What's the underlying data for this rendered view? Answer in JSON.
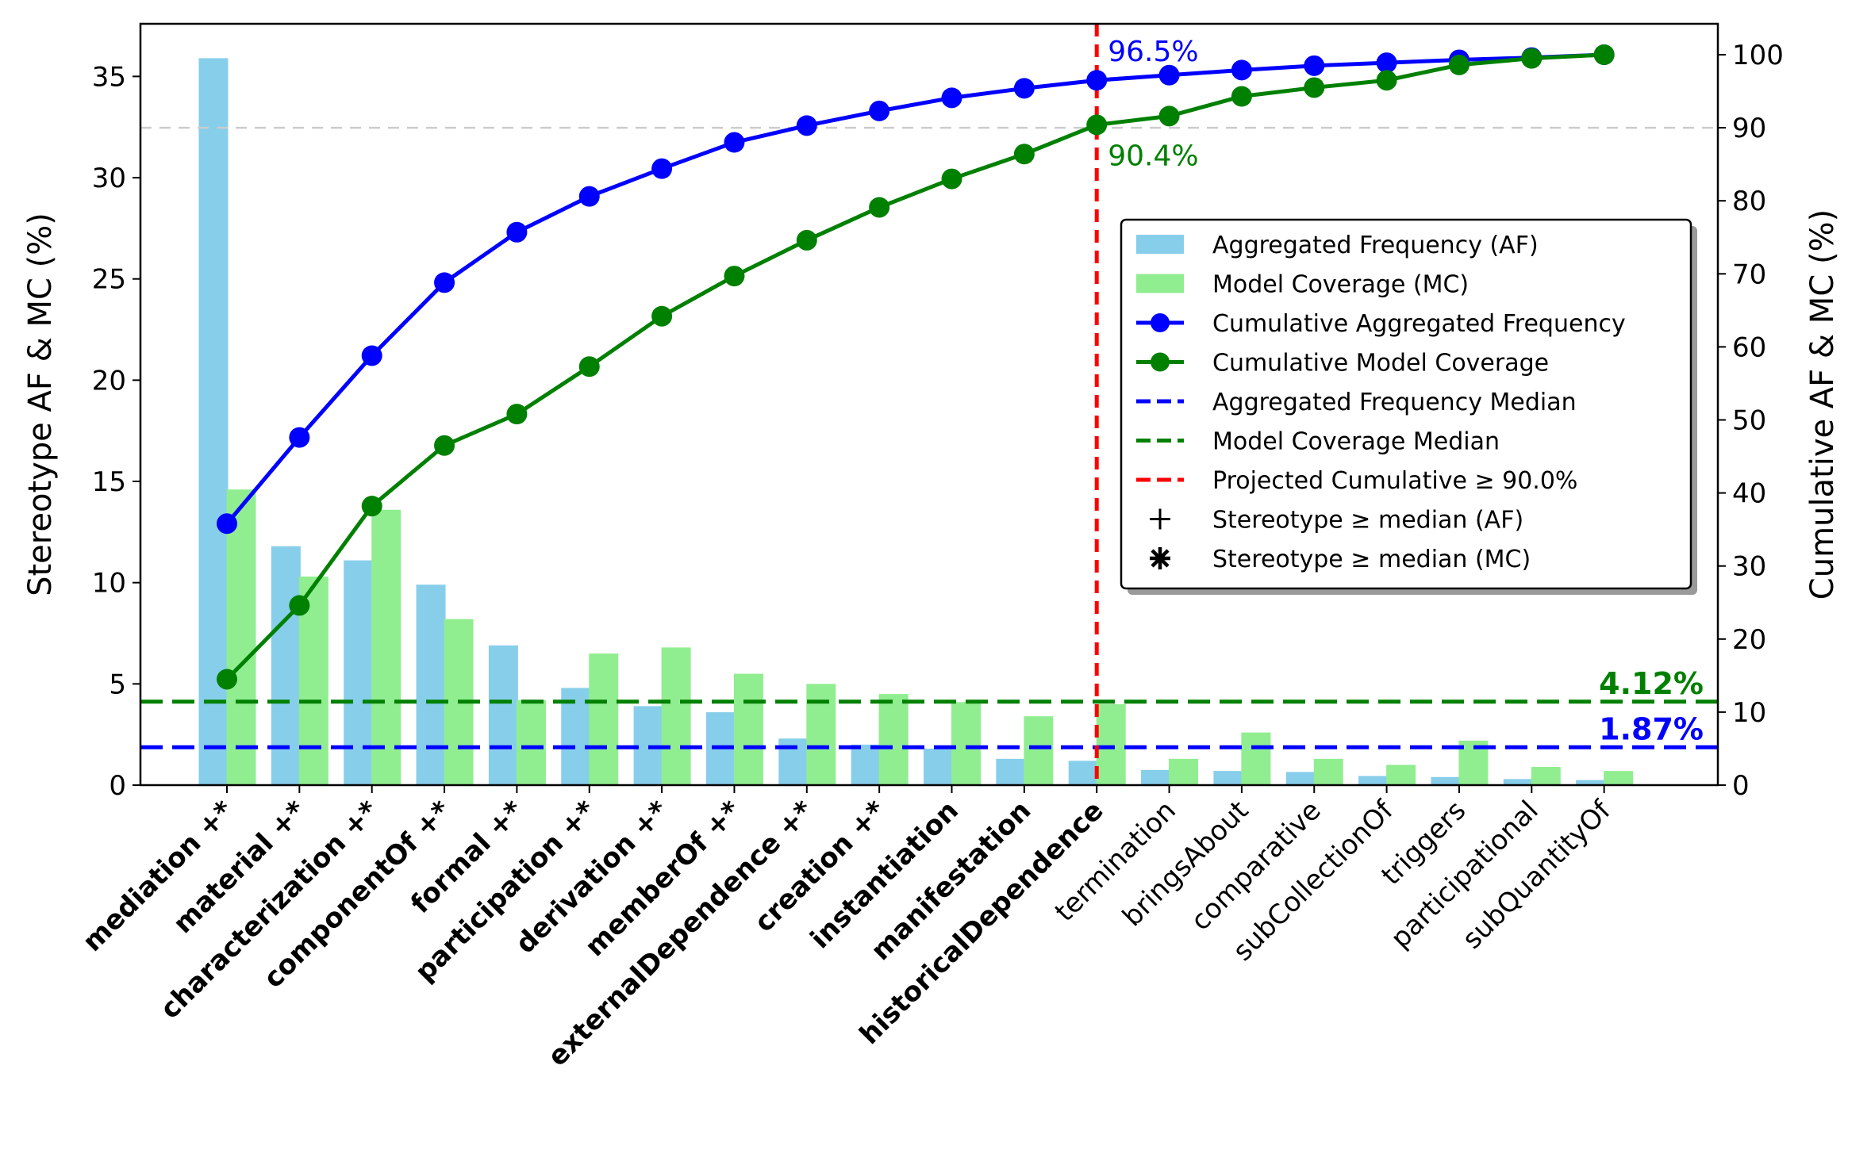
{
  "chart_data": {
    "type": "bar",
    "categories": [
      "mediation +*",
      "material +*",
      "characterization +*",
      "componentOf +*",
      "formal +*",
      "participation +*",
      "derivation +*",
      "memberOf +*",
      "externalDependence +*",
      "creation +*",
      "instantiation",
      "manifestation",
      "historicalDependence",
      "termination",
      "bringsAbout",
      "comparative",
      "subCollectionOf",
      "triggers",
      "participational",
      "subQuantityOf"
    ],
    "bold_categories": [
      true,
      true,
      true,
      true,
      true,
      true,
      true,
      true,
      true,
      true,
      true,
      true,
      true,
      false,
      false,
      false,
      false,
      false,
      false,
      false
    ],
    "series": [
      {
        "name": "Aggregated Frequency (AF)",
        "axis": "left",
        "kind": "bar",
        "color": "#87ceeb",
        "values": [
          35.9,
          11.8,
          11.1,
          9.9,
          6.9,
          4.8,
          3.9,
          3.6,
          2.3,
          2.0,
          1.8,
          1.3,
          1.2,
          0.75,
          0.7,
          0.65,
          0.45,
          0.4,
          0.3,
          0.25
        ]
      },
      {
        "name": "Model Coverage (MC)",
        "axis": "left",
        "kind": "bar",
        "color": "#90ee90",
        "values": [
          14.6,
          10.3,
          13.6,
          8.2,
          4.2,
          6.5,
          6.8,
          5.5,
          5.0,
          4.5,
          4.1,
          3.4,
          4.0,
          1.3,
          2.6,
          1.3,
          1.0,
          2.2,
          0.9,
          0.7
        ]
      },
      {
        "name": "Cumulative Aggregated Frequency",
        "axis": "right",
        "kind": "line",
        "color": "#0000ff",
        "values": [
          35.8,
          47.6,
          58.8,
          68.8,
          75.7,
          80.6,
          84.4,
          88.0,
          90.3,
          92.3,
          94.1,
          95.4,
          96.5,
          97.2,
          97.9,
          98.5,
          98.9,
          99.3,
          99.6,
          100.0
        ]
      },
      {
        "name": "Cumulative Model Coverage",
        "axis": "right",
        "kind": "line",
        "color": "#008000",
        "values": [
          14.5,
          24.6,
          38.2,
          46.5,
          50.8,
          57.3,
          64.2,
          69.7,
          74.6,
          79.1,
          83.0,
          86.4,
          90.4,
          91.6,
          94.3,
          95.5,
          96.5,
          98.6,
          99.5,
          100.0
        ]
      }
    ],
    "xlabel": "",
    "ylabel": "Stereotype AF & MC (%)",
    "ylabel_right": "Cumulative AF & MC (%)",
    "ylim": [
      0,
      37.6
    ],
    "ylim_right": [
      0,
      100
    ],
    "yticks": [
      0,
      5,
      10,
      15,
      20,
      25,
      30,
      35
    ],
    "yticks_right": [
      0,
      10,
      20,
      30,
      40,
      50,
      60,
      70,
      80,
      90,
      100
    ],
    "reference_lines": [
      {
        "name": "Aggregated Frequency Median",
        "orientation": "horizontal",
        "axis": "left",
        "value": 1.87,
        "color": "#0000ff",
        "label": "1.87%"
      },
      {
        "name": "Model Coverage Median",
        "orientation": "horizontal",
        "axis": "left",
        "value": 4.12,
        "color": "#008000",
        "label": "4.12%"
      },
      {
        "name": "Projected Cumulative ≥ 90.0%",
        "orientation": "vertical",
        "category_index": 12,
        "color": "#ff0000"
      },
      {
        "orientation": "horizontal",
        "axis": "right",
        "value": 90,
        "color": "#cccccc"
      }
    ],
    "annotations": [
      {
        "text": "96.5%",
        "category_index": 12,
        "value": 96.5,
        "color": "#0000ff",
        "position": "above"
      },
      {
        "text": "90.4%",
        "category_index": 12,
        "value": 90.4,
        "color": "#008000",
        "position": "below"
      }
    ],
    "legend": {
      "placement": "center-right",
      "entries": [
        {
          "label": "Aggregated Frequency (AF)",
          "marker": "bar",
          "color": "#87ceeb"
        },
        {
          "label": "Model Coverage (MC)",
          "marker": "bar",
          "color": "#90ee90"
        },
        {
          "label": "Cumulative Aggregated Frequency",
          "marker": "line-dot",
          "color": "#0000ff"
        },
        {
          "label": "Cumulative Model Coverage",
          "marker": "line-dot",
          "color": "#008000"
        },
        {
          "label": "Aggregated Frequency Median",
          "marker": "dash",
          "color": "#0000ff"
        },
        {
          "label": "Model Coverage Median",
          "marker": "dash",
          "color": "#008000"
        },
        {
          "label": "Projected Cumulative ≥ 90.0%",
          "marker": "dash",
          "color": "#ff0000"
        },
        {
          "label": "Stereotype ≥ median (AF)",
          "marker": "plus",
          "color": "#000000"
        },
        {
          "label": "Stereotype ≥ median (MC)",
          "marker": "asterisk",
          "color": "#000000"
        }
      ]
    },
    "grid": false
  }
}
